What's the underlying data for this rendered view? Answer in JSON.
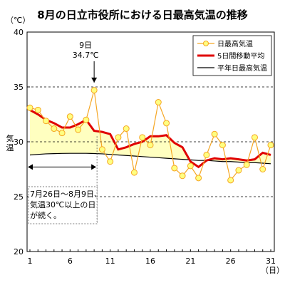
{
  "chart_data": {
    "type": "line",
    "title": "8月の日立市役所における日最高気温の推移",
    "ylabel": "気温",
    "y_unit": "（℃）",
    "x_unit": "（日）",
    "ylim": [
      20,
      40
    ],
    "y_ticks": [
      20,
      25,
      30,
      35,
      40
    ],
    "xlim": [
      1,
      31
    ],
    "x_ticks": [
      1,
      6,
      11,
      16,
      21,
      26,
      31
    ],
    "x": [
      1,
      2,
      3,
      4,
      5,
      6,
      7,
      8,
      9,
      10,
      11,
      12,
      13,
      14,
      15,
      16,
      17,
      18,
      19,
      20,
      21,
      22,
      23,
      24,
      25,
      26,
      27,
      28,
      29,
      30,
      31
    ],
    "series": [
      {
        "name": "日最高気温",
        "color": "#f5a623",
        "values": [
          33.1,
          32.9,
          31.9,
          31.2,
          30.8,
          32.3,
          31.1,
          32.0,
          34.7,
          29.3,
          28.2,
          30.4,
          31.2,
          27.2,
          30.4,
          29.7,
          33.6,
          31.7,
          27.6,
          26.9,
          27.8,
          26.7,
          28.8,
          30.7,
          29.7,
          26.5,
          27.4,
          27.9,
          30.4,
          27.5,
          29.7
        ]
      },
      {
        "name": "5日間移動平均",
        "color": "#e00000",
        "values": [
          32.9,
          32.5,
          32.0,
          31.7,
          31.3,
          31.3,
          31.6,
          32.0,
          31.0,
          30.9,
          30.7,
          29.3,
          29.5,
          29.8,
          30.0,
          30.5,
          30.5,
          30.6,
          29.9,
          29.5,
          28.2,
          27.7,
          28.3,
          28.5,
          28.4,
          28.5,
          28.4,
          28.3,
          28.4,
          29.0,
          28.8
        ]
      },
      {
        "name": "平年日最高気温",
        "color": "#000000",
        "values": [
          28.8,
          28.85,
          28.9,
          28.92,
          28.94,
          28.95,
          28.95,
          28.95,
          28.93,
          28.9,
          28.85,
          28.8,
          28.75,
          28.7,
          28.65,
          28.6,
          28.55,
          28.5,
          28.45,
          28.4,
          28.35,
          28.3,
          28.3,
          28.25,
          28.2,
          28.2,
          28.15,
          28.1,
          28.1,
          28.05,
          28.0
        ]
      }
    ],
    "dashed_gridlines": [
      35,
      30,
      25
    ],
    "annotation": {
      "x": 9,
      "value": "34.7℃",
      "label": "9日"
    },
    "range_note": {
      "from": 1,
      "to": 9,
      "lines": [
        "7月26日～8月9日、",
        "気温30℃以上の日",
        "が続く。"
      ]
    },
    "legend_placement": "top-right",
    "colors": {
      "shade": "#ffffc0",
      "marker_fill": "#ffff80"
    }
  }
}
